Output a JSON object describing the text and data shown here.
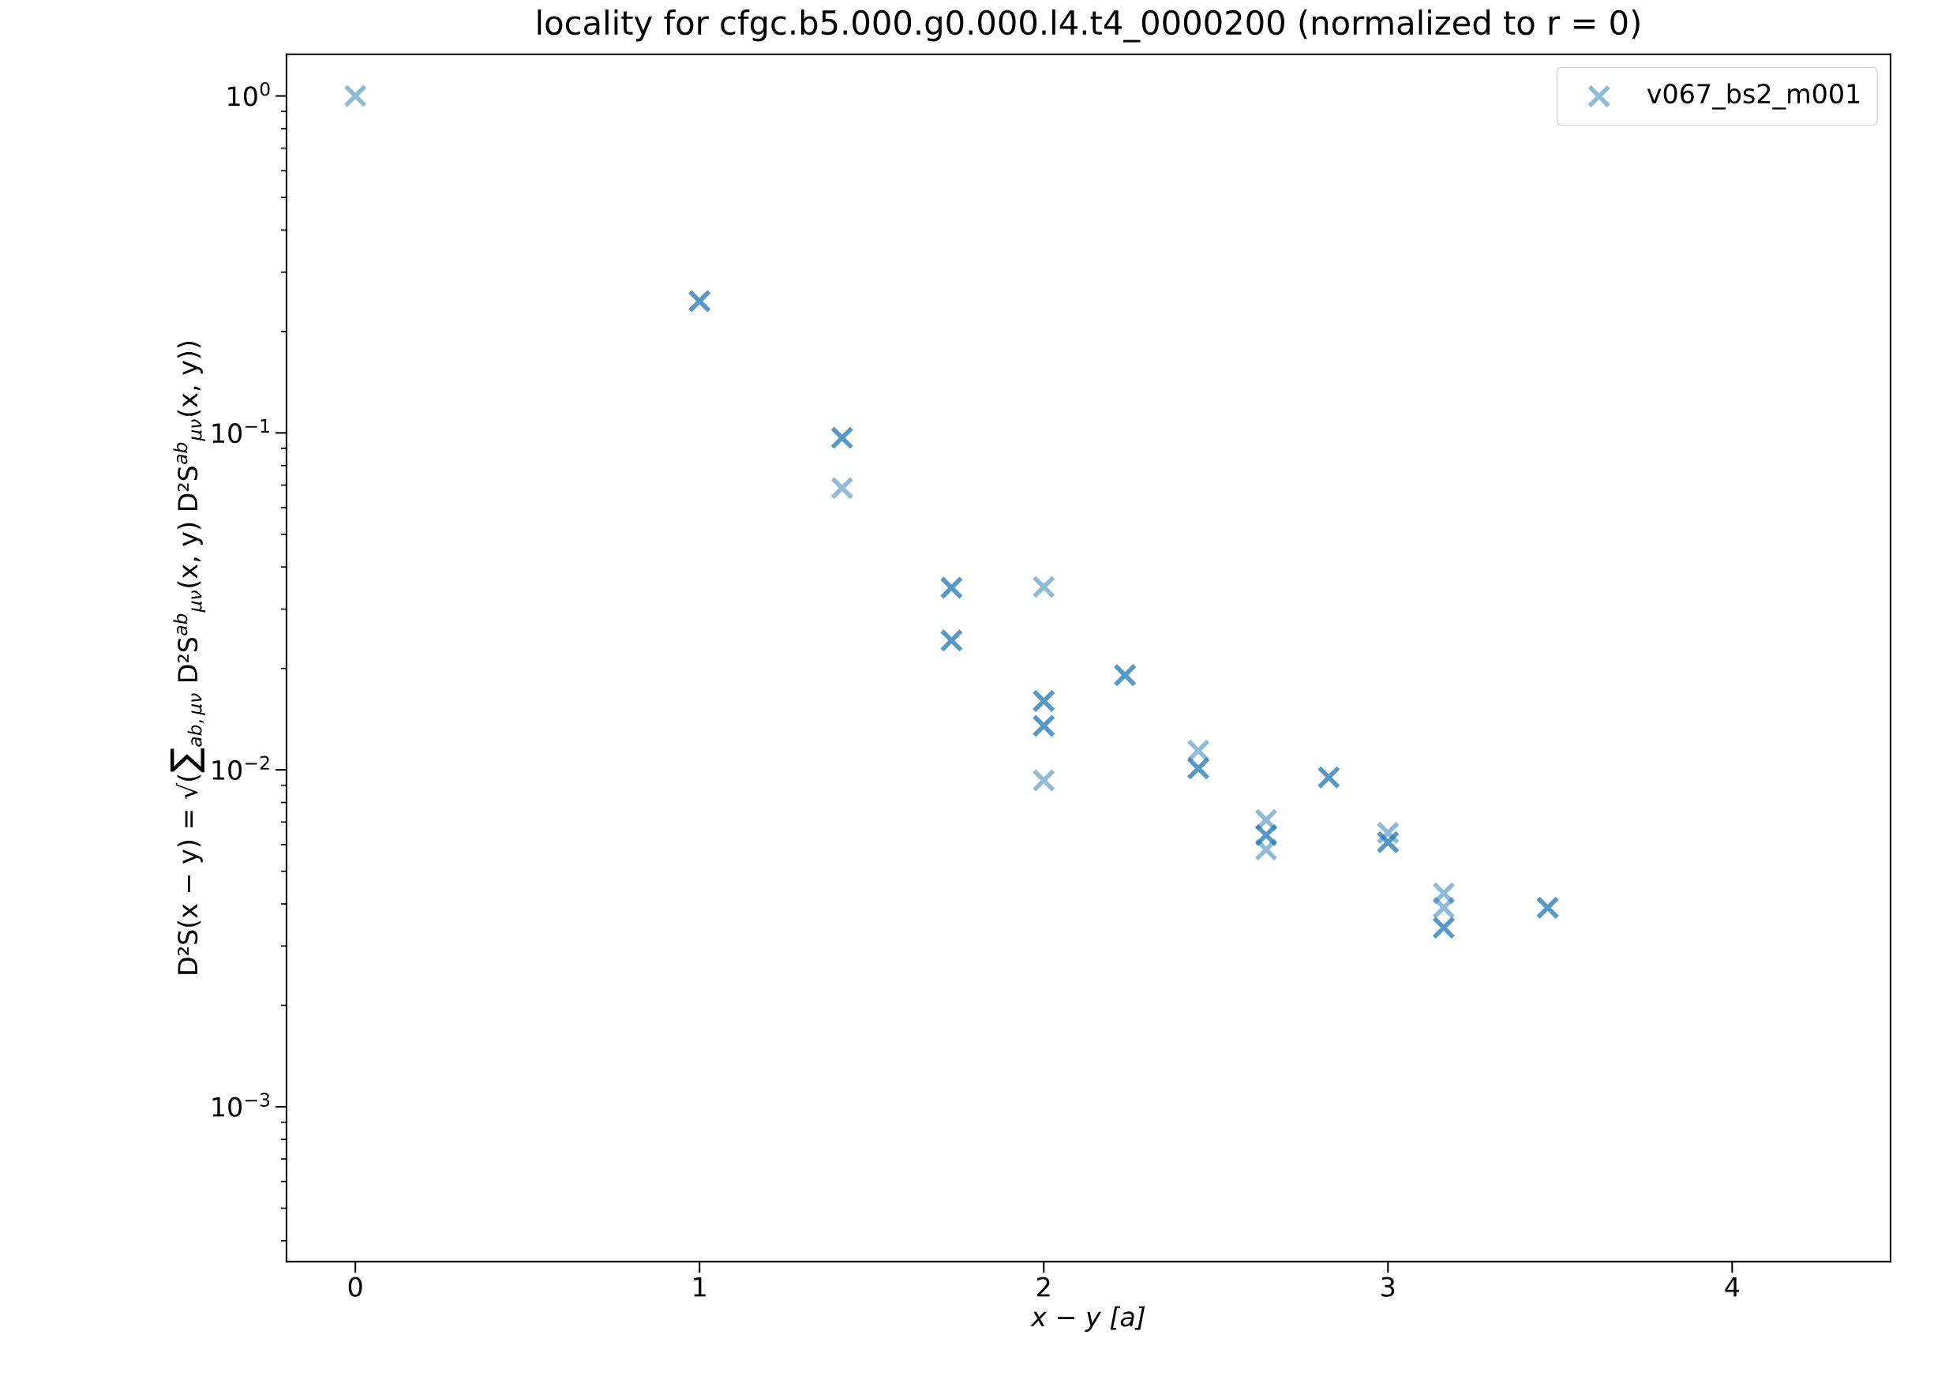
{
  "chart_data": {
    "type": "scatter",
    "title": "locality for cfgc.b5.000.g0.000.l4.t4_0000200 (normalized to r = 0)",
    "xlabel": "x − y [a]",
    "ylabel": "D²S(x − y) = √(∑$_{ab,μν}$ D²S$^{ab}$$_{μν}$(x, y) D²S$^{ab}$$_{μν}$(x, y))",
    "series": [
      {
        "name": "v067_bs2_m001",
        "color": "#1f77b4",
        "x": [
          0,
          1,
          1,
          1.414,
          1.414,
          1.414,
          1.732,
          1.732,
          1.732,
          1.732,
          2,
          2,
          2,
          2,
          2,
          2,
          2.236,
          2.236,
          2.449,
          2.449,
          2.449,
          2.646,
          2.646,
          2.646,
          2.646,
          2.828,
          2.828,
          3,
          3,
          3,
          3.162,
          3.162,
          3.162,
          3.162,
          3.464,
          3.464
        ],
        "values": [
          1,
          0.246,
          0.246,
          0.0967,
          0.0967,
          0.0686,
          0.0347,
          0.0347,
          0.0242,
          0.0242,
          0.0349,
          0.016,
          0.016,
          0.0135,
          0.0135,
          0.0093,
          0.0191,
          0.0191,
          0.0114,
          0.0101,
          0.0101,
          0.0071,
          0.0064,
          0.0064,
          0.0058,
          0.0095,
          0.0095,
          0.0065,
          0.0061,
          0.0061,
          0.0043,
          0.0039,
          0.0034,
          0.0034,
          0.0039,
          0.0039
        ]
      }
    ],
    "marker": "cross",
    "log": "y",
    "legend": "top right",
    "grid": false,
    "xlim": [
      -0.2,
      4.46
    ],
    "xticks": [
      0,
      1,
      2,
      3,
      4
    ],
    "ylim": [
      0.000347,
      1.33
    ],
    "yticks": [
      {
        "value": 1,
        "label": "10$^{0}$"
      },
      {
        "value": 0.1,
        "label": "10$^{−1}$"
      },
      {
        "value": 0.01,
        "label": "10$^{−2}$"
      },
      {
        "value": 0.001,
        "label": "10$^{−3}$"
      }
    ]
  }
}
